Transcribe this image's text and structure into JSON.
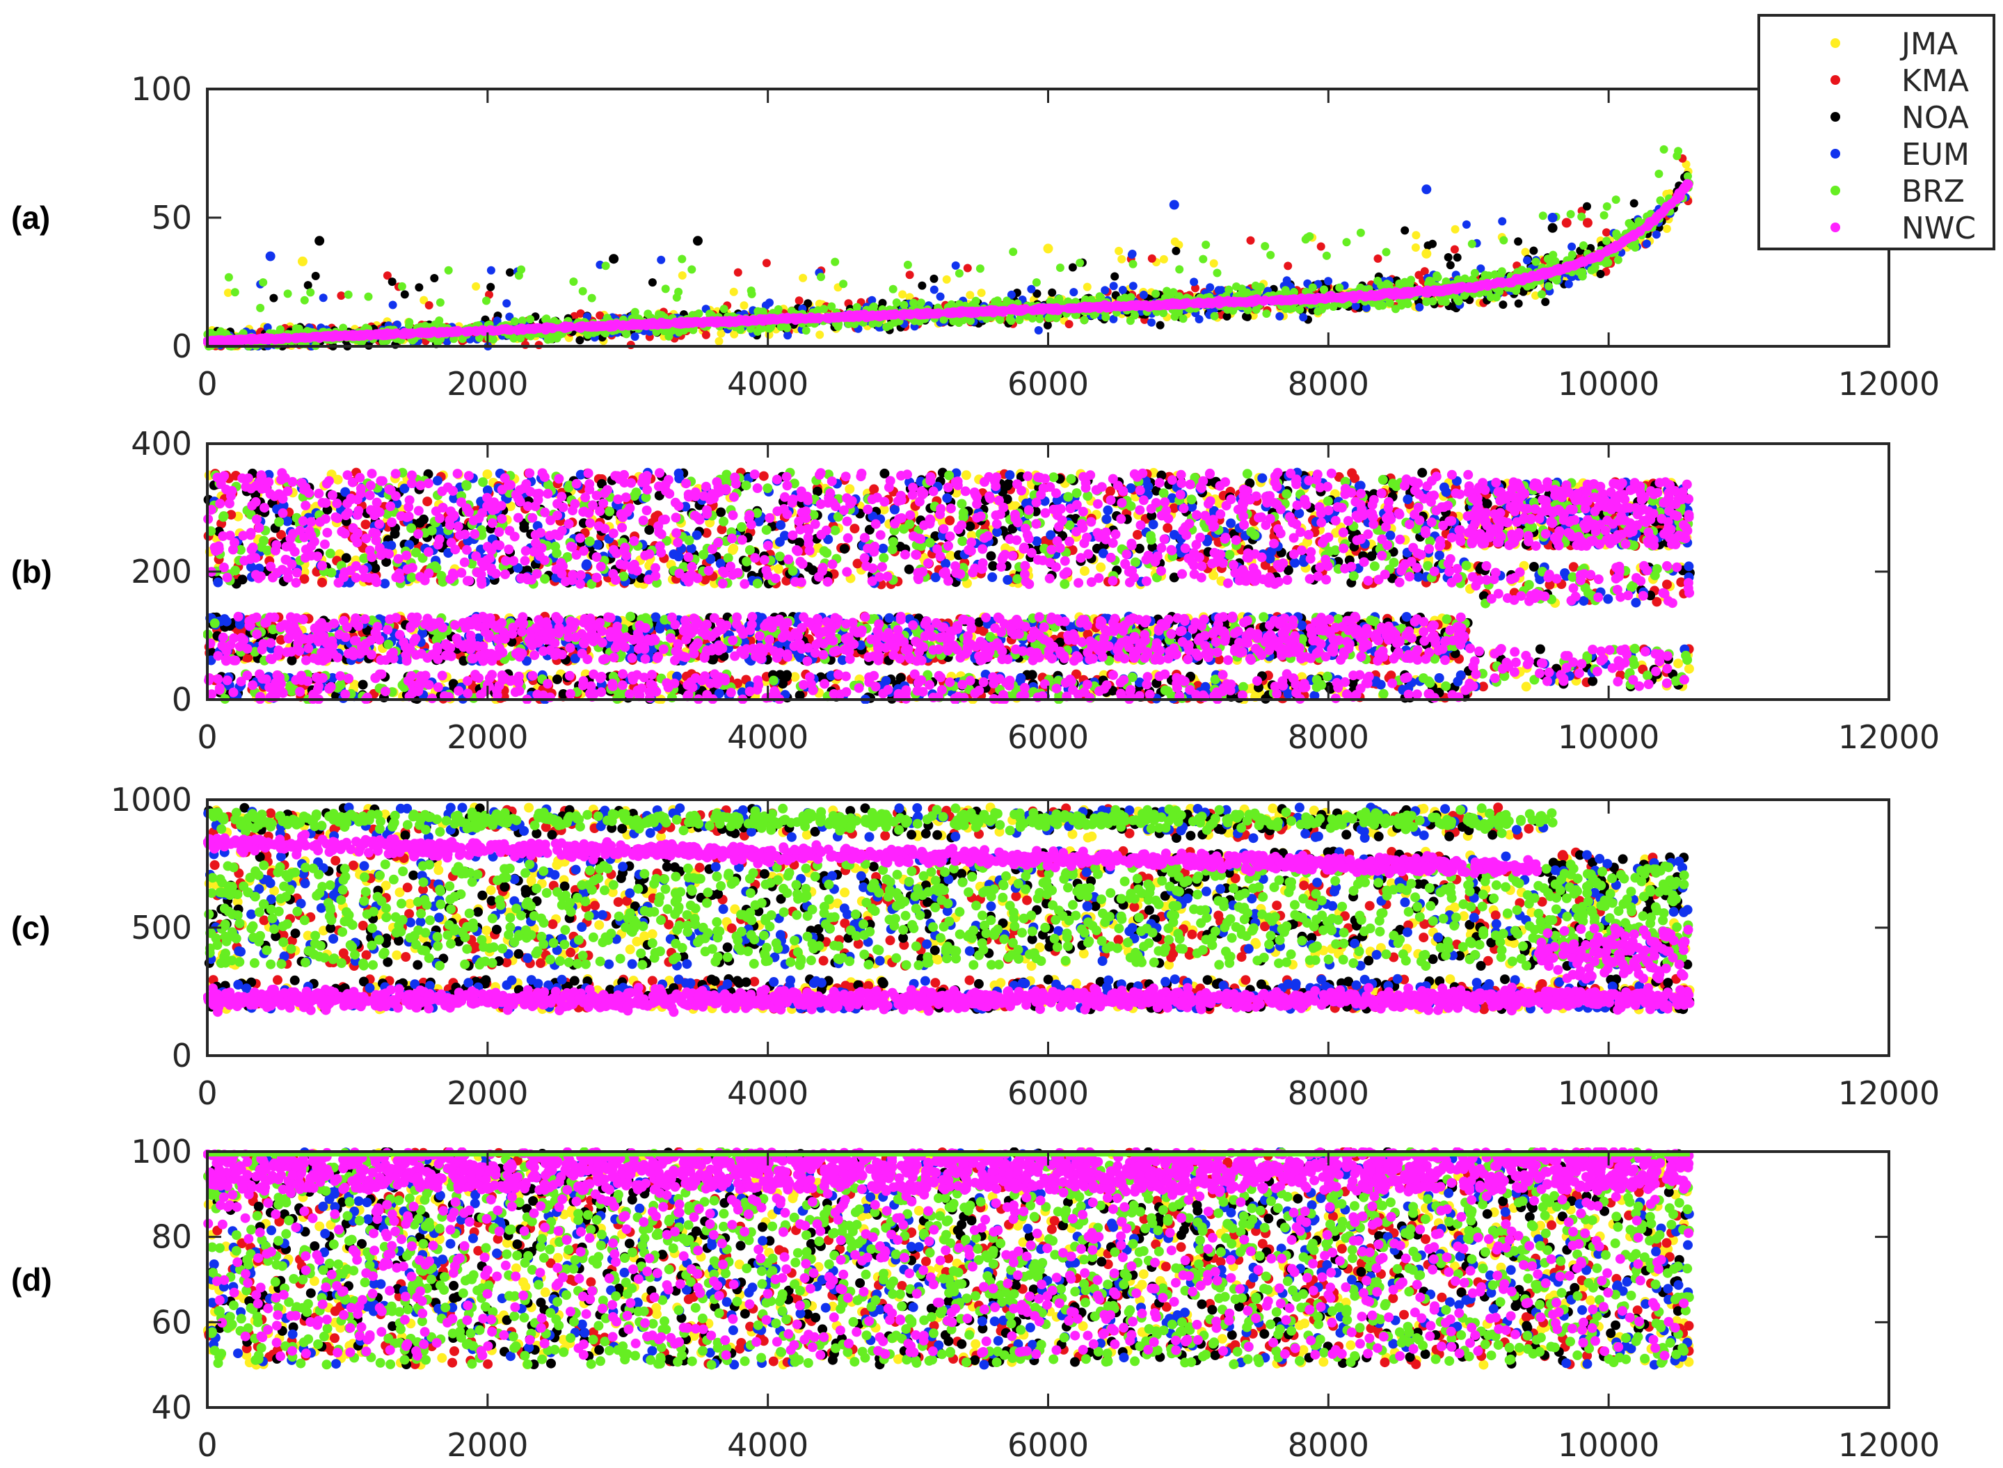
{
  "legend": {
    "placement": "top-right",
    "entries": [
      {
        "name": "JMA",
        "color": "#ffee22"
      },
      {
        "name": "KMA",
        "color": "#e8141b"
      },
      {
        "name": "NOA",
        "color": "#000000"
      },
      {
        "name": "EUM",
        "color": "#1133ee"
      },
      {
        "name": "BRZ",
        "color": "#66ee22"
      },
      {
        "name": "NWC",
        "color": "#ff22ff"
      }
    ]
  },
  "chart_data": [
    {
      "type": "scatter",
      "panel_label": "(a)",
      "xlim": [
        0,
        12000
      ],
      "ylim": [
        0,
        100
      ],
      "xticks": [
        0,
        2000,
        4000,
        6000,
        8000,
        10000,
        12000
      ],
      "yticks": [
        0,
        50,
        100
      ],
      "grid": false,
      "n_points": 10580,
      "series": [
        {
          "name": "NWC",
          "x": [
            0,
            500,
            1000,
            2000,
            3000,
            4000,
            5000,
            6000,
            7000,
            8000,
            9000,
            9500,
            10000,
            10300,
            10500,
            10580
          ],
          "y": [
            2,
            4,
            5,
            7,
            8,
            9,
            10,
            11,
            12,
            14,
            17,
            20,
            26,
            33,
            45,
            63
          ]
        },
        {
          "name": "BRZ",
          "x": [
            0,
            2000,
            4000,
            6000,
            8000,
            9500,
            10000,
            10500
          ],
          "y": [
            5,
            7,
            9,
            11,
            13,
            18,
            22,
            28
          ]
        },
        {
          "name": "EUM",
          "x": [
            450,
            6900,
            8700,
            9600
          ],
          "y": [
            35,
            55,
            61,
            50
          ]
        },
        {
          "name": "NOA",
          "x": [
            800,
            3500,
            2900,
            9600
          ],
          "y": [
            41,
            41,
            34,
            46
          ]
        },
        {
          "name": "JMA",
          "x": [
            680,
            6000,
            8700
          ],
          "y": [
            33,
            38,
            36
          ]
        },
        {
          "name": "KMA",
          "x": [
            9700,
            9850
          ],
          "y": [
            48,
            48
          ]
        }
      ]
    },
    {
      "type": "scatter",
      "panel_label": "(b)",
      "xlim": [
        0,
        12000
      ],
      "ylim": [
        0,
        400
      ],
      "xticks": [
        0,
        2000,
        4000,
        6000,
        8000,
        10000,
        12000
      ],
      "yticks": [
        0,
        200,
        400
      ],
      "grid": false,
      "n_points": 10580,
      "series": [
        {
          "name": "NWC",
          "x": [
            0,
            2000,
            4000,
            6000,
            8000,
            9000,
            10000,
            10500
          ],
          "y": [
            90,
            85,
            90,
            95,
            95,
            280,
            290,
            300
          ]
        }
      ]
    },
    {
      "type": "scatter",
      "panel_label": "(c)",
      "xlim": [
        0,
        12000
      ],
      "ylim": [
        0,
        1000
      ],
      "xticks": [
        0,
        2000,
        4000,
        6000,
        8000,
        10000,
        12000
      ],
      "yticks": [
        0,
        500,
        1000
      ],
      "grid": false,
      "n_points": 10580,
      "series": [
        {
          "name": "NWC",
          "x": [
            0,
            2000,
            4000,
            6000,
            8000,
            9000,
            10000,
            10500
          ],
          "y": [
            220,
            220,
            230,
            230,
            230,
            300,
            320,
            330
          ]
        },
        {
          "name": "BRZ",
          "x": [
            0,
            2000,
            4000,
            6000,
            8000,
            9500
          ],
          "y": [
            920,
            910,
            900,
            890,
            880,
            850
          ]
        }
      ]
    },
    {
      "type": "scatter",
      "panel_label": "(d)",
      "xlim": [
        0,
        12000
      ],
      "ylim": [
        40,
        100
      ],
      "xticks": [
        0,
        2000,
        4000,
        6000,
        8000,
        10000,
        12000
      ],
      "yticks": [
        40,
        60,
        80,
        100
      ],
      "grid": false,
      "n_points": 10580,
      "series": [
        {
          "name": "NWC",
          "x": [
            0,
            2000,
            4000,
            6000,
            8000,
            10000,
            10580
          ],
          "y": [
            95,
            95,
            96,
            96,
            96,
            97,
            98
          ]
        },
        {
          "name": "BRZ",
          "x": [
            0,
            2000,
            4000,
            6000,
            8000,
            10000,
            10580
          ],
          "y": [
            65,
            64,
            65,
            66,
            66,
            62,
            60
          ]
        }
      ]
    }
  ]
}
